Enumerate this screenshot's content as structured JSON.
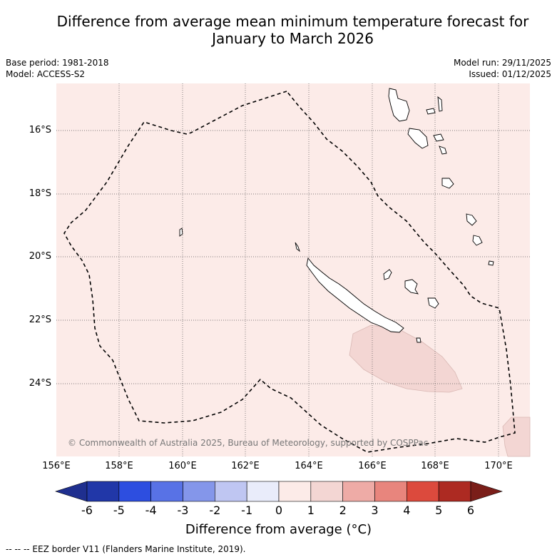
{
  "title": {
    "line1": "Difference from average mean minimum temperature forecast for",
    "line2": "January to March 2026"
  },
  "meta": {
    "base_period": "Base period: 1981-2018",
    "model": "Model: ACCESS-S2",
    "model_run": "Model run: 29/11/2025",
    "issued": "Issued: 01/12/2025"
  },
  "axes": {
    "lat_labels": [
      "16°S",
      "18°S",
      "20°S",
      "22°S",
      "24°S"
    ],
    "lon_labels": [
      "156°E",
      "158°E",
      "160°E",
      "162°E",
      "164°E",
      "166°E",
      "168°E",
      "170°E"
    ]
  },
  "watermark": "© Commonwealth of Australia 2025, Bureau of Meteorology, supported by COSPPac",
  "colorbar": {
    "ticks": [
      "-6",
      "-5",
      "-4",
      "-3",
      "-2",
      "-1",
      "0",
      "1",
      "2",
      "3",
      "4",
      "5",
      "6"
    ],
    "colors": [
      "#1f2f8f",
      "#2137a8",
      "#2d4ee0",
      "#5872e6",
      "#8496ea",
      "#bfc6f2",
      "#e9ecfa",
      "#fcebe8",
      "#f3d6d3",
      "#eeaba6",
      "#e8857d",
      "#dc4a3d",
      "#ad2a22",
      "#7a1e19"
    ],
    "label": "Difference from average (°C)"
  },
  "footnote": "--  --  -- EEZ border V11 (Flanders Marine Institute, 2019).",
  "map_colors": {
    "background": "#fcebe8",
    "anomaly_patch": "#f3d6d3"
  }
}
